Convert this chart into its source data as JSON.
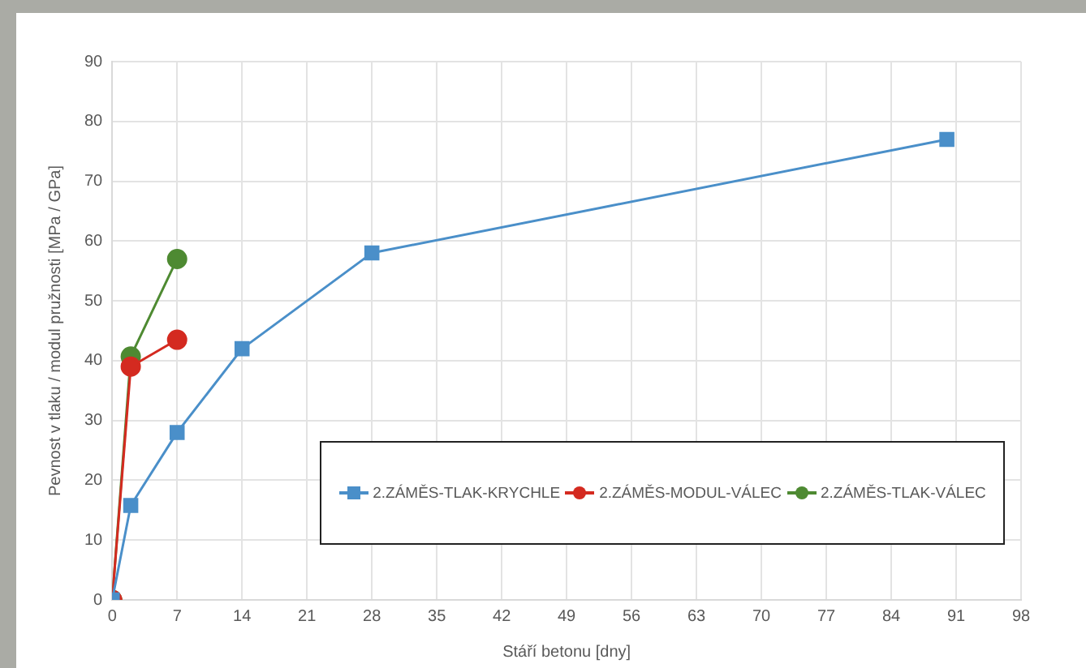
{
  "chart_data": {
    "type": "line",
    "xlabel": "Stáří betonu [dny]",
    "ylabel": "Pevnost v tlaku / modul pružnosti [MPa / GPa]",
    "xlim": [
      0,
      98
    ],
    "xticks": [
      0,
      7,
      14,
      21,
      28,
      35,
      42,
      49,
      56,
      63,
      70,
      77,
      84,
      91,
      98
    ],
    "ylim": [
      0,
      90
    ],
    "yticks": [
      0,
      10,
      20,
      30,
      40,
      50,
      60,
      70,
      80,
      90
    ],
    "grid": true,
    "legend": "bottom right",
    "series": [
      {
        "name": "2.ZÁMĚS-TLAK-KRYCHLE",
        "color": "#4a8fc9",
        "marker": "square",
        "x": [
          0,
          2,
          7,
          14,
          28,
          90
        ],
        "values": [
          0,
          15.8,
          28,
          42,
          58,
          77
        ]
      },
      {
        "name": "2.ZÁMĚS-MODUL-VÁLEC",
        "color": "#d42a20",
        "marker": "circle",
        "x": [
          0,
          2,
          7
        ],
        "values": [
          0,
          39,
          43.5
        ]
      },
      {
        "name": "2.ZÁMĚS-TLAK-VÁLEC",
        "color": "#4e8a32",
        "marker": "circle",
        "x": [
          0,
          2,
          7
        ],
        "values": [
          0,
          40.7,
          57
        ]
      }
    ]
  }
}
